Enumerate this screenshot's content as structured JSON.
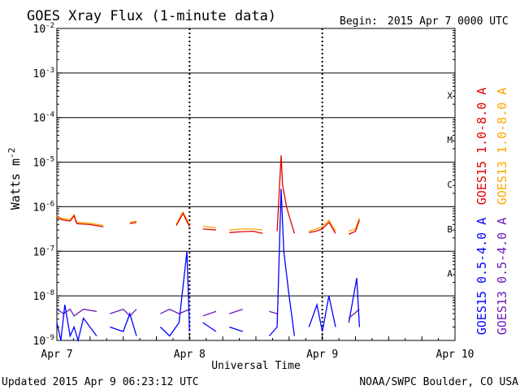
{
  "chart_data": {
    "type": "line",
    "title": "GOES Xray Flux (1-minute data)",
    "begin_label": "Begin:",
    "begin_value": "2015 Apr 7 0000 UTC",
    "xlabel": "Universal Time",
    "ylabel": "Watts m",
    "ylabel_exponent": "-2",
    "y_scale": "log",
    "ylim": [
      1e-09,
      0.01
    ],
    "xlim": [
      0,
      3
    ],
    "x_ticks": [
      {
        "value": 0,
        "label": "Apr 7"
      },
      {
        "value": 1,
        "label": "Apr 8"
      },
      {
        "value": 2,
        "label": "Apr 9"
      },
      {
        "value": 3,
        "label": "Apr 10"
      }
    ],
    "y_ticks": [
      {
        "exp": -9
      },
      {
        "exp": -8
      },
      {
        "exp": -7
      },
      {
        "exp": -6
      },
      {
        "exp": -5
      },
      {
        "exp": -4
      },
      {
        "exp": -3
      },
      {
        "exp": -2
      }
    ],
    "flare_classes": [
      {
        "label": "X",
        "exp": -3.5
      },
      {
        "label": "M",
        "exp": -4.5
      },
      {
        "label": "C",
        "exp": -5.5
      },
      {
        "label": "B",
        "exp": -6.5
      },
      {
        "label": "A",
        "exp": -7.5
      }
    ],
    "grid": true,
    "legend_position": "right",
    "series": [
      {
        "name": "GOES15 1.0-8.0 A",
        "color": "#e00000",
        "points": [
          [
            0.0,
            -6.25
          ],
          [
            0.05,
            -6.3
          ],
          [
            0.1,
            -6.32
          ],
          [
            0.13,
            -6.2
          ],
          [
            0.15,
            -6.38
          ],
          [
            0.25,
            -6.4
          ],
          [
            0.35,
            -6.45
          ],
          [
            0.45,
            -6.42
          ],
          [
            0.55,
            -6.38
          ],
          [
            0.6,
            -6.35
          ],
          [
            0.78,
            -6.4
          ],
          [
            0.9,
            -6.42
          ],
          [
            0.95,
            -6.15
          ],
          [
            1.0,
            -6.45
          ],
          [
            1.1,
            -6.5
          ],
          [
            1.2,
            -6.52
          ],
          [
            1.3,
            -6.58
          ],
          [
            1.4,
            -6.56
          ],
          [
            1.48,
            -6.55
          ],
          [
            1.55,
            -6.6
          ],
          [
            1.66,
            -6.55
          ],
          [
            1.69,
            -4.85
          ],
          [
            1.7,
            -5.5
          ],
          [
            1.73,
            -6.0
          ],
          [
            1.75,
            -6.2
          ],
          [
            1.79,
            -6.6
          ],
          [
            1.9,
            -6.58
          ],
          [
            1.95,
            -6.55
          ],
          [
            2.0,
            -6.5
          ],
          [
            2.05,
            -6.35
          ],
          [
            2.1,
            -6.6
          ],
          [
            2.2,
            -6.62
          ],
          [
            2.25,
            -6.55
          ],
          [
            2.28,
            -6.3
          ]
        ]
      },
      {
        "name": "GOES13 1.0-8.0 A",
        "color": "#ffa500",
        "points": [
          [
            0.0,
            -6.22
          ],
          [
            0.05,
            -6.27
          ],
          [
            0.1,
            -6.29
          ],
          [
            0.13,
            -6.18
          ],
          [
            0.15,
            -6.35
          ],
          [
            0.25,
            -6.37
          ],
          [
            0.35,
            -6.42
          ],
          [
            0.45,
            -6.4
          ],
          [
            0.55,
            -6.35
          ],
          [
            0.6,
            -6.32
          ],
          [
            0.78,
            -6.37
          ],
          [
            0.9,
            -6.39
          ],
          [
            0.95,
            -6.12
          ],
          [
            1.0,
            -6.4
          ],
          [
            1.1,
            -6.44
          ],
          [
            1.2,
            -6.47
          ],
          [
            1.3,
            -6.52
          ],
          [
            1.4,
            -6.5
          ],
          [
            1.48,
            -6.5
          ],
          [
            1.55,
            -6.52
          ],
          [
            1.66,
            -6.5
          ],
          [
            1.79,
            -6.55
          ],
          [
            1.9,
            -6.55
          ],
          [
            1.95,
            -6.5
          ],
          [
            2.0,
            -6.45
          ],
          [
            2.05,
            -6.3
          ],
          [
            2.1,
            -6.55
          ],
          [
            2.2,
            -6.55
          ],
          [
            2.25,
            -6.5
          ],
          [
            2.28,
            -6.25
          ]
        ]
      },
      {
        "name": "GOES15 0.5-4.0 A",
        "color": "#0000ff",
        "points": [
          [
            0.0,
            -8.6
          ],
          [
            0.03,
            -9.0
          ],
          [
            0.06,
            -8.2
          ],
          [
            0.1,
            -8.9
          ],
          [
            0.13,
            -8.7
          ],
          [
            0.16,
            -9.0
          ],
          [
            0.2,
            -8.5
          ],
          [
            0.3,
            -8.9
          ],
          [
            0.4,
            -8.7
          ],
          [
            0.5,
            -8.8
          ],
          [
            0.55,
            -8.4
          ],
          [
            0.6,
            -8.9
          ],
          [
            0.78,
            -8.7
          ],
          [
            0.85,
            -8.9
          ],
          [
            0.92,
            -8.6
          ],
          [
            0.98,
            -7.0
          ],
          [
            1.0,
            -8.8
          ],
          [
            1.1,
            -8.6
          ],
          [
            1.2,
            -8.8
          ],
          [
            1.3,
            -8.7
          ],
          [
            1.4,
            -8.8
          ],
          [
            1.5,
            -8.6
          ],
          [
            1.6,
            -8.9
          ],
          [
            1.66,
            -8.7
          ],
          [
            1.69,
            -5.6
          ],
          [
            1.71,
            -7.0
          ],
          [
            1.75,
            -8.0
          ],
          [
            1.79,
            -8.9
          ],
          [
            1.9,
            -8.7
          ],
          [
            1.96,
            -8.2
          ],
          [
            2.0,
            -8.8
          ],
          [
            2.05,
            -8.0
          ],
          [
            2.1,
            -8.7
          ],
          [
            2.2,
            -8.6
          ],
          [
            2.26,
            -7.6
          ],
          [
            2.28,
            -8.7
          ]
        ]
      },
      {
        "name": "GOES13 0.5-4.0 A",
        "color": "#6a1cb8",
        "points": [
          [
            0.0,
            -8.3
          ],
          [
            0.05,
            -8.4
          ],
          [
            0.1,
            -8.3
          ],
          [
            0.13,
            -8.45
          ],
          [
            0.2,
            -8.3
          ],
          [
            0.3,
            -8.35
          ],
          [
            0.4,
            -8.4
          ],
          [
            0.5,
            -8.3
          ],
          [
            0.55,
            -8.45
          ],
          [
            0.6,
            -8.3
          ],
          [
            0.78,
            -8.4
          ],
          [
            0.85,
            -8.3
          ],
          [
            0.92,
            -8.4
          ],
          [
            1.0,
            -8.3
          ],
          [
            1.1,
            -8.45
          ],
          [
            1.2,
            -8.35
          ],
          [
            1.3,
            -8.4
          ],
          [
            1.4,
            -8.3
          ],
          [
            1.5,
            -8.45
          ],
          [
            1.6,
            -8.35
          ],
          [
            1.66,
            -8.4
          ],
          [
            1.79,
            -8.5
          ],
          [
            1.9,
            -8.4
          ],
          [
            2.0,
            -8.45
          ],
          [
            2.1,
            -8.4
          ],
          [
            2.2,
            -8.5
          ],
          [
            2.28,
            -8.3
          ]
        ]
      }
    ]
  },
  "footer": {
    "updated": "Updated 2015 Apr  9 06:23:12 UTC",
    "source": "NOAA/SWPC Boulder, CO USA"
  }
}
